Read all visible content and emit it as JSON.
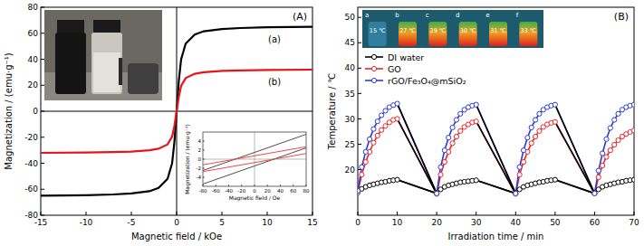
{
  "chart_data": [
    {
      "type": "line",
      "title": "(A)",
      "xlabel": "Magnetic field / kOe",
      "ylabel": "Magnetization / (emu·g⁻¹)",
      "xlim": [
        -15,
        15
      ],
      "xticks": [
        -15,
        -10,
        -5,
        0,
        5,
        10,
        15
      ],
      "ylim": [
        -80,
        80
      ],
      "yticks": [
        -80,
        -60,
        -40,
        -20,
        0,
        20,
        40,
        60,
        80
      ],
      "grid": false,
      "x": [
        -15,
        -10,
        -7,
        -5,
        -3,
        -2,
        -1,
        -0.5,
        -0.25,
        0,
        0.25,
        0.5,
        1,
        2,
        3,
        5,
        7,
        10,
        15
      ],
      "series": [
        {
          "name": "(a)",
          "color": "#000000",
          "values": [
            -65,
            -64.6,
            -64,
            -63.2,
            -61.5,
            -59,
            -52,
            -40,
            -24,
            0,
            24,
            40,
            52,
            59,
            61.5,
            63.2,
            64,
            64.6,
            65
          ]
        },
        {
          "name": "(b)",
          "color": "#e8141c",
          "values": [
            -32,
            -31.8,
            -31.4,
            -31,
            -30,
            -28.8,
            -25.5,
            -19.5,
            -11.5,
            0,
            11.5,
            19.5,
            25.5,
            28.8,
            30,
            31,
            31.4,
            31.8,
            32
          ]
        }
      ],
      "inset": {
        "type": "line",
        "xlabel": "Magnetic field / Oe",
        "ylabel": "Magnetization / (emu·g⁻¹)",
        "xlim": [
          -80,
          80
        ],
        "xticks": [
          -80,
          -60,
          -40,
          -20,
          0,
          20,
          40,
          60,
          80
        ],
        "ylim": [
          -6,
          6
        ],
        "yticks": [
          -4,
          -2,
          0,
          2,
          4
        ],
        "grid": false,
        "x": [
          -80,
          80
        ],
        "series": [
          {
            "color": "#4d4d4d",
            "values": [
              -2.5,
              5.5
            ]
          },
          {
            "color": "#4d4d4d",
            "values": [
              -5.5,
              2.5
            ]
          },
          {
            "color": "#e84a4a",
            "values": [
              -1.25,
              2.75
            ]
          },
          {
            "color": "#e84a4a",
            "values": [
              -2.75,
              1.25
            ]
          }
        ]
      }
    },
    {
      "type": "line",
      "title": "(B)",
      "xlabel": "Irradiation time / min",
      "ylabel": "Temperature / ℃",
      "xlim": [
        0,
        70
      ],
      "xticks": [
        0,
        10,
        20,
        30,
        40,
        50,
        60,
        70
      ],
      "ylim": [
        11,
        52
      ],
      "yticks": [
        20,
        25,
        30,
        35,
        40,
        45,
        50
      ],
      "grid": false,
      "marker": "circle",
      "line_style": "solid",
      "legend": "upper left",
      "image_labels": [
        {
          "letter": "a",
          "temperature": "15 ℃"
        },
        {
          "letter": "b",
          "temperature": "27 ℃"
        },
        {
          "letter": "c",
          "temperature": "29 ℃"
        },
        {
          "letter": "d",
          "temperature": "30 ℃"
        },
        {
          "letter": "e",
          "temperature": "31 ℃"
        },
        {
          "letter": "f",
          "temperature": "33 ℃"
        }
      ],
      "x": [
        0,
        1,
        2,
        3,
        4,
        5,
        6,
        7,
        8,
        9,
        10,
        20,
        21,
        22,
        23,
        24,
        25,
        26,
        27,
        28,
        29,
        30,
        40,
        41,
        42,
        43,
        44,
        45,
        46,
        47,
        48,
        49,
        50,
        60,
        61,
        62,
        63,
        64,
        65,
        66,
        67,
        68,
        69,
        70
      ],
      "series": [
        {
          "name": "DI water",
          "color": "#000000",
          "values": [
            15.5,
            16.2,
            16.6,
            16.9,
            17.1,
            17.3,
            17.5,
            17.6,
            17.8,
            17.9,
            18.0,
            15.3,
            16.1,
            16.6,
            16.9,
            17.1,
            17.3,
            17.5,
            17.6,
            17.7,
            17.8,
            17.9,
            15.3,
            16.1,
            16.6,
            16.9,
            17.1,
            17.3,
            17.5,
            17.6,
            17.8,
            17.9,
            18.0,
            15.3,
            16.1,
            16.6,
            16.9,
            17.1,
            17.3,
            17.5,
            17.6,
            17.8,
            17.9,
            18.0
          ]
        },
        {
          "name": "GO",
          "color": "#e8262b",
          "values": [
            15.5,
            19.0,
            21.5,
            23.5,
            25.3,
            26.7,
            27.8,
            28.6,
            29.3,
            29.8,
            30.0,
            15.2,
            19.0,
            21.5,
            23.5,
            25.2,
            26.5,
            27.6,
            28.4,
            28.9,
            29.3,
            29.5,
            15.2,
            19.0,
            21.5,
            23.5,
            25.2,
            26.5,
            27.6,
            28.4,
            28.9,
            29.2,
            29.4,
            15.3,
            18.5,
            20.8,
            22.5,
            23.8,
            24.9,
            25.8,
            26.5,
            27.0,
            27.4,
            27.7
          ]
        },
        {
          "name": "rGO/Fe₃O₄@mSiO₂",
          "color": "#2b3bd1",
          "values": [
            15.8,
            20.5,
            23.5,
            26.0,
            28.0,
            29.5,
            30.7,
            31.6,
            32.3,
            32.7,
            33.0,
            15.3,
            20.5,
            23.8,
            26.3,
            28.3,
            29.8,
            31.0,
            31.8,
            32.3,
            32.6,
            32.8,
            15.3,
            20.5,
            23.8,
            26.3,
            28.3,
            29.8,
            31.0,
            31.8,
            32.3,
            32.6,
            32.8,
            15.3,
            19.8,
            23.2,
            26.0,
            28.2,
            29.8,
            31.0,
            31.8,
            32.3,
            32.6,
            32.8
          ]
        }
      ]
    }
  ]
}
